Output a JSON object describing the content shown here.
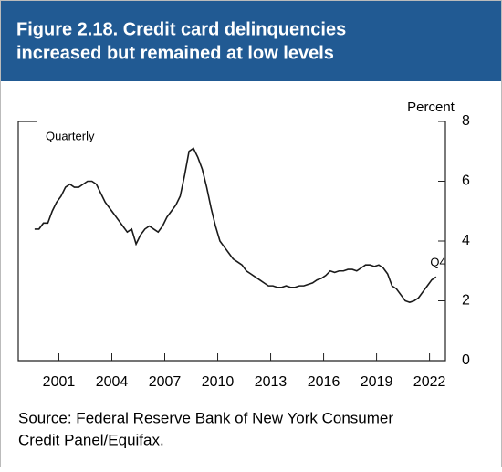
{
  "header": {
    "title_lines": [
      "Figure 2.18. Credit card delinquencies",
      "increased but remained at low levels"
    ]
  },
  "chart_data": {
    "type": "line",
    "y_axis_label": "Percent",
    "annotations": [
      "Quarterly",
      "Q4"
    ],
    "x": [
      2000.125,
      2000.375,
      2000.625,
      2000.875,
      2001.125,
      2001.375,
      2001.625,
      2001.875,
      2002.125,
      2002.375,
      2002.625,
      2002.875,
      2003.125,
      2003.375,
      2003.625,
      2003.875,
      2004.125,
      2004.375,
      2004.625,
      2004.875,
      2005.125,
      2005.375,
      2005.625,
      2005.875,
      2006.125,
      2006.375,
      2006.625,
      2006.875,
      2007.125,
      2007.375,
      2007.625,
      2007.875,
      2008.125,
      2008.375,
      2008.625,
      2008.875,
      2009.125,
      2009.375,
      2009.625,
      2009.875,
      2010.125,
      2010.375,
      2010.625,
      2010.875,
      2011.125,
      2011.375,
      2011.625,
      2011.875,
      2012.125,
      2012.375,
      2012.625,
      2012.875,
      2013.125,
      2013.375,
      2013.625,
      2013.875,
      2014.125,
      2014.375,
      2014.625,
      2014.875,
      2015.125,
      2015.375,
      2015.625,
      2015.875,
      2016.125,
      2016.375,
      2016.625,
      2016.875,
      2017.125,
      2017.375,
      2017.625,
      2017.875,
      2018.125,
      2018.375,
      2018.625,
      2018.875,
      2019.125,
      2019.375,
      2019.625,
      2019.875,
      2020.125,
      2020.375,
      2020.625,
      2020.875,
      2021.125,
      2021.375,
      2021.625,
      2021.875,
      2022.125,
      2022.375,
      2022.625,
      2022.875
    ],
    "series": [
      {
        "color": "#1a1a1a",
        "values": [
          4.4,
          4.4,
          4.6,
          4.6,
          5.0,
          5.3,
          5.5,
          5.8,
          5.9,
          5.8,
          5.8,
          5.9,
          6.0,
          6.0,
          5.9,
          5.6,
          5.3,
          5.1,
          4.9,
          4.7,
          4.5,
          4.3,
          4.4,
          3.9,
          4.2,
          4.4,
          4.5,
          4.4,
          4.3,
          4.5,
          4.8,
          5.0,
          5.2,
          5.5,
          6.2,
          7.0,
          7.1,
          6.8,
          6.4,
          5.8,
          5.1,
          4.5,
          4.0,
          3.8,
          3.6,
          3.4,
          3.3,
          3.2,
          3.0,
          2.9,
          2.8,
          2.7,
          2.6,
          2.5,
          2.5,
          2.45,
          2.45,
          2.5,
          2.45,
          2.45,
          2.5,
          2.5,
          2.55,
          2.6,
          2.7,
          2.75,
          2.85,
          3.0,
          2.95,
          3.0,
          3.0,
          3.05,
          3.05,
          3.0,
          3.1,
          3.2,
          3.2,
          3.15,
          3.2,
          3.1,
          2.9,
          2.5,
          2.4,
          2.2,
          2.0,
          1.95,
          2.0,
          2.1,
          2.3,
          2.5,
          2.7,
          2.8
        ]
      }
    ],
    "xlim": [
      1999.2,
      2023.4
    ],
    "xticks": [
      {
        "value": 2001.5,
        "label": "2001"
      },
      {
        "value": 2004.5,
        "label": "2004"
      },
      {
        "value": 2007.5,
        "label": "2007"
      },
      {
        "value": 2010.5,
        "label": "2010"
      },
      {
        "value": 2013.5,
        "label": "2013"
      },
      {
        "value": 2016.5,
        "label": "2016"
      },
      {
        "value": 2019.5,
        "label": "2019"
      },
      {
        "value": 2022.5,
        "label": "2022"
      }
    ],
    "ylim": [
      0,
      8
    ],
    "yticks": [
      0,
      2,
      4,
      6,
      8
    ]
  },
  "source": [
    "Source: Federal Reserve Bank of New York Consumer",
    "Credit Panel/Equifax."
  ]
}
